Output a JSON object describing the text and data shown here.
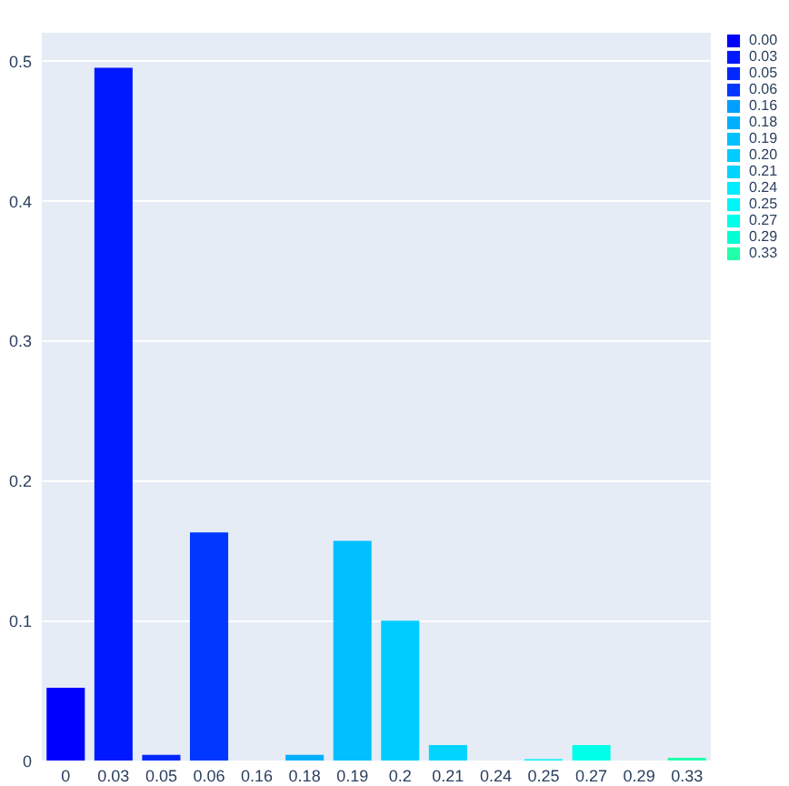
{
  "chart_data": {
    "type": "bar",
    "categories": [
      "0",
      "0.03",
      "0.05",
      "0.06",
      "0.16",
      "0.18",
      "0.19",
      "0.2",
      "0.21",
      "0.24",
      "0.25",
      "0.27",
      "0.29",
      "0.33"
    ],
    "ylim": [
      0,
      0.52
    ],
    "yticks": [
      0,
      0.1,
      0.2,
      0.3,
      0.4,
      0.5
    ],
    "grid": "y",
    "legend": "top right",
    "series": [
      {
        "name": "0.00",
        "color": "#0000ff",
        "values": [
          0.052,
          null,
          null,
          null,
          null,
          null,
          null,
          null,
          null,
          null,
          null,
          null,
          null,
          null
        ]
      },
      {
        "name": "0.03",
        "color": "#0018ff",
        "values": [
          null,
          0.495,
          null,
          null,
          null,
          null,
          null,
          null,
          null,
          null,
          null,
          null,
          null,
          null
        ]
      },
      {
        "name": "0.05",
        "color": "#0028ff",
        "values": [
          null,
          null,
          0.004,
          null,
          null,
          null,
          null,
          null,
          null,
          null,
          null,
          null,
          null,
          null
        ]
      },
      {
        "name": "0.06",
        "color": "#0038ff",
        "values": [
          null,
          null,
          null,
          0.163,
          null,
          null,
          null,
          null,
          null,
          null,
          null,
          null,
          null,
          null
        ]
      },
      {
        "name": "0.16",
        "color": "#00a0ff",
        "values": [
          null,
          null,
          null,
          null,
          0,
          null,
          null,
          null,
          null,
          null,
          null,
          null,
          null,
          null
        ]
      },
      {
        "name": "0.18",
        "color": "#00b0ff",
        "values": [
          null,
          null,
          null,
          null,
          null,
          0.004,
          null,
          null,
          null,
          null,
          null,
          null,
          null,
          null
        ]
      },
      {
        "name": "0.19",
        "color": "#00c0ff",
        "values": [
          null,
          null,
          null,
          null,
          null,
          null,
          0.157,
          null,
          null,
          null,
          null,
          null,
          null,
          null
        ]
      },
      {
        "name": "0.20",
        "color": "#00ccff",
        "values": [
          null,
          null,
          null,
          null,
          null,
          null,
          null,
          0.1,
          null,
          null,
          null,
          null,
          null,
          null
        ]
      },
      {
        "name": "0.21",
        "color": "#00d4ff",
        "values": [
          null,
          null,
          null,
          null,
          null,
          null,
          null,
          null,
          0.011,
          null,
          null,
          null,
          null,
          null
        ]
      },
      {
        "name": "0.24",
        "color": "#00ecff",
        "values": [
          null,
          null,
          null,
          null,
          null,
          null,
          null,
          null,
          null,
          0,
          null,
          null,
          null,
          null
        ]
      },
      {
        "name": "0.25",
        "color": "#00f4f8",
        "values": [
          null,
          null,
          null,
          null,
          null,
          null,
          null,
          null,
          null,
          null,
          0.001,
          null,
          null,
          null
        ]
      },
      {
        "name": "0.27",
        "color": "#00ffe8",
        "values": [
          null,
          null,
          null,
          null,
          null,
          null,
          null,
          null,
          null,
          null,
          null,
          0.011,
          null,
          null
        ]
      },
      {
        "name": "0.29",
        "color": "#00ffd4",
        "values": [
          null,
          null,
          null,
          null,
          null,
          null,
          null,
          null,
          null,
          null,
          null,
          null,
          0,
          null
        ]
      },
      {
        "name": "0.33",
        "color": "#22ffaa",
        "values": [
          null,
          null,
          null,
          null,
          null,
          null,
          null,
          null,
          null,
          null,
          null,
          null,
          null,
          0.002
        ]
      }
    ]
  }
}
